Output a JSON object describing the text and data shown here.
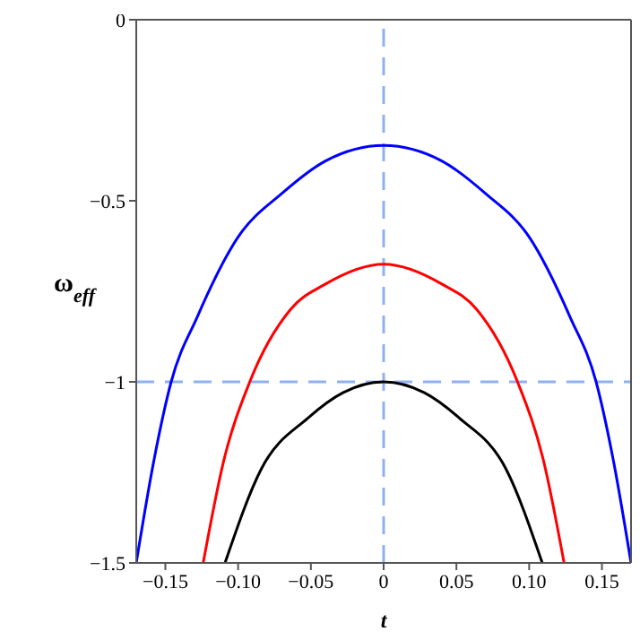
{
  "chart_data": {
    "type": "line",
    "xlabel": "t",
    "ylabel": "ω$_{eff}$",
    "series": [
      {
        "color": "#0000ff",
        "x": [
          -0.17,
          -0.158,
          -0.146,
          -0.128,
          -0.1,
          -0.07,
          -0.04,
          0,
          0.04,
          0.07,
          0.1,
          0.128,
          0.146,
          0.158,
          0.17
        ],
        "values": [
          -1.5,
          -1.22,
          -1.0,
          -0.82,
          -0.6,
          -0.48,
          -0.39,
          -0.347,
          -0.39,
          -0.48,
          -0.6,
          -0.82,
          -1.0,
          -1.22,
          -1.5
        ]
      },
      {
        "color": "#ff0000",
        "x": [
          -0.124,
          -0.11,
          -0.092,
          -0.064,
          -0.04,
          0,
          0.04,
          0.064,
          0.092,
          0.11,
          0.124
        ],
        "values": [
          -1.5,
          -1.22,
          -1.0,
          -0.8,
          -0.73,
          -0.675,
          -0.73,
          -0.8,
          -1.0,
          -1.22,
          -1.5
        ]
      },
      {
        "color": "#000000",
        "x": [
          -0.109,
          -0.084,
          -0.052,
          -0.028,
          0,
          0.028,
          0.052,
          0.084,
          0.109
        ],
        "values": [
          -1.5,
          -1.24,
          -1.1,
          -1.03,
          -1.0,
          -1.03,
          -1.1,
          -1.24,
          -1.5
        ]
      }
    ],
    "xlim": [
      -0.17,
      0.17
    ],
    "ylim": [
      -1.5,
      0
    ],
    "xticks": [
      {
        "value": -0.15,
        "label": "−0.15"
      },
      {
        "value": -0.1,
        "label": "−0.10"
      },
      {
        "value": -0.05,
        "label": "−0.05"
      },
      0,
      {
        "value": 0.05,
        "label": "0.05"
      },
      {
        "value": 0.1,
        "label": "0.10"
      },
      {
        "value": 0.15,
        "label": "0.15"
      }
    ],
    "yticks": [
      0,
      {
        "value": -0.5,
        "label": "−0.5"
      },
      {
        "value": -1,
        "label": "−1"
      },
      {
        "value": -1.5,
        "label": "−1.5"
      }
    ],
    "ref_lines": [
      {
        "axis": "x",
        "value": 0,
        "color": "#8fb0f4",
        "line_style": "dashed"
      },
      {
        "axis": "y",
        "value": -1,
        "color": "#8fb0f4",
        "line_style": "dashed"
      }
    ],
    "marker": "none",
    "line_style": "solid"
  }
}
